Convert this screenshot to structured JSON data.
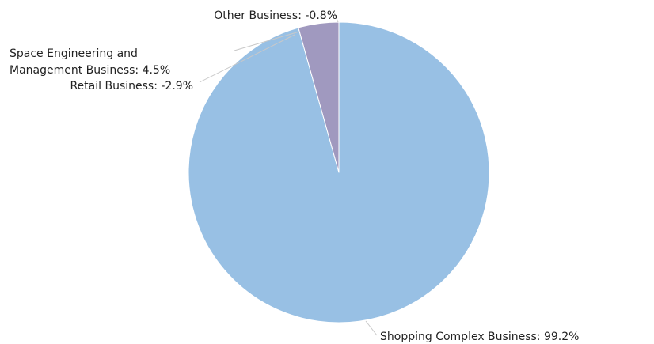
{
  "chart_data": {
    "type": "pie",
    "title": "",
    "slices": [
      {
        "label": "Shopping Complex Business",
        "value": 99.2,
        "display": "99.2%",
        "color": "#98c0e4"
      },
      {
        "label": "Space Engineering and Management Business",
        "value": 4.5,
        "display": "4.5%",
        "color": "#a099bf"
      },
      {
        "label": "Retail Business",
        "value": -2.9,
        "display": "-2.9%",
        "color": "#d9d9d9"
      },
      {
        "label": "Other Business",
        "value": -0.8,
        "display": "-0.8%",
        "color": "#d9d9d9"
      }
    ],
    "legend": "none",
    "label_format": "{label}: {display}"
  }
}
